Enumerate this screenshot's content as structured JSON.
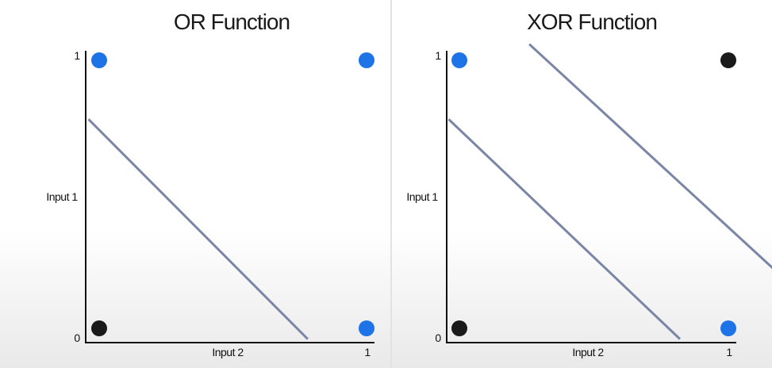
{
  "colors": {
    "positive": "#1e74e6",
    "negative": "#1a1a1a",
    "boundary": "#7b86a6"
  },
  "chart_data": [
    {
      "type": "scatter",
      "title": "OR Function",
      "xlabel": "Input 2",
      "ylabel": "Input 1",
      "xlim": [
        0,
        1
      ],
      "ylim": [
        0,
        1
      ],
      "ticks": {
        "origin": "0",
        "x_max": "1",
        "y_max": "1"
      },
      "points": [
        {
          "x": 0,
          "y": 1,
          "class": "positive"
        },
        {
          "x": 1,
          "y": 1,
          "class": "positive"
        },
        {
          "x": 0,
          "y": 0,
          "class": "negative"
        },
        {
          "x": 1,
          "y": 0,
          "class": "positive"
        }
      ],
      "lines": [
        {
          "x1": -0.04,
          "y1": 0.78,
          "x2": 0.78,
          "y2": -0.04
        }
      ]
    },
    {
      "type": "scatter",
      "title": "XOR Function",
      "xlabel": "Input 2",
      "ylabel": "Input 1",
      "xlim": [
        0,
        1
      ],
      "ylim": [
        0,
        1
      ],
      "ticks": {
        "origin": "0",
        "x_max": "1",
        "y_max": "1"
      },
      "points": [
        {
          "x": 0,
          "y": 1,
          "class": "positive"
        },
        {
          "x": 1,
          "y": 1,
          "class": "negative"
        },
        {
          "x": 0,
          "y": 0,
          "class": "negative"
        },
        {
          "x": 1,
          "y": 0,
          "class": "positive"
        }
      ],
      "lines": [
        {
          "x1": -0.04,
          "y1": 0.78,
          "x2": 0.82,
          "y2": -0.04
        },
        {
          "x1": 0.26,
          "y1": 1.06,
          "x2": 1.17,
          "y2": 0.22
        }
      ]
    }
  ]
}
